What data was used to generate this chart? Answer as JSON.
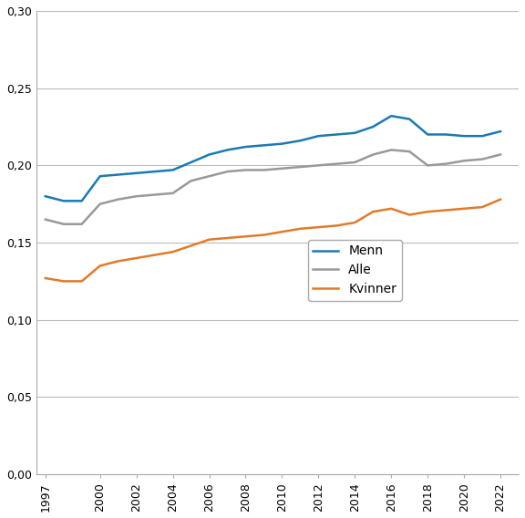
{
  "years": [
    1997,
    1998,
    1999,
    2000,
    2001,
    2002,
    2003,
    2004,
    2005,
    2006,
    2007,
    2008,
    2009,
    2010,
    2011,
    2012,
    2013,
    2014,
    2015,
    2016,
    2017,
    2018,
    2019,
    2020,
    2021,
    2022
  ],
  "menn": [
    0.18,
    0.177,
    0.177,
    0.193,
    0.194,
    0.195,
    0.196,
    0.197,
    0.202,
    0.207,
    0.21,
    0.212,
    0.213,
    0.214,
    0.216,
    0.219,
    0.22,
    0.221,
    0.225,
    0.232,
    0.23,
    0.22,
    0.22,
    0.219,
    0.219,
    0.222
  ],
  "alle": [
    0.165,
    0.162,
    0.162,
    0.175,
    0.178,
    0.18,
    0.181,
    0.182,
    0.19,
    0.193,
    0.196,
    0.197,
    0.197,
    0.198,
    0.199,
    0.2,
    0.201,
    0.202,
    0.207,
    0.21,
    0.209,
    0.2,
    0.201,
    0.203,
    0.204,
    0.207
  ],
  "kvinner": [
    0.127,
    0.125,
    0.125,
    0.135,
    0.138,
    0.14,
    0.142,
    0.144,
    0.148,
    0.152,
    0.153,
    0.154,
    0.155,
    0.157,
    0.159,
    0.16,
    0.161,
    0.163,
    0.17,
    0.172,
    0.168,
    0.17,
    0.171,
    0.172,
    0.173,
    0.178
  ],
  "menn_color": "#1a7ab5",
  "alle_color": "#999999",
  "kvinner_color": "#e07b2a",
  "menn_label": "Menn",
  "alle_label": "Alle",
  "kvinner_label": "Kvinner",
  "ylim": [
    0.0,
    0.3
  ],
  "yticks": [
    0.0,
    0.05,
    0.1,
    0.15,
    0.2,
    0.25,
    0.3
  ],
  "xtick_labels": [
    "1997",
    "2000",
    "2002",
    "2004",
    "2006",
    "2008",
    "2010",
    "2012",
    "2014",
    "2016",
    "2018",
    "2020",
    "2022"
  ],
  "xtick_years": [
    1997,
    2000,
    2002,
    2004,
    2006,
    2008,
    2010,
    2012,
    2014,
    2016,
    2018,
    2020,
    2022
  ],
  "linewidth": 1.8,
  "background_color": "#ffffff",
  "grid_color": "#bbbbbb",
  "spine_color": "#aaaaaa",
  "tick_fontsize": 9,
  "legend_fontsize": 10
}
